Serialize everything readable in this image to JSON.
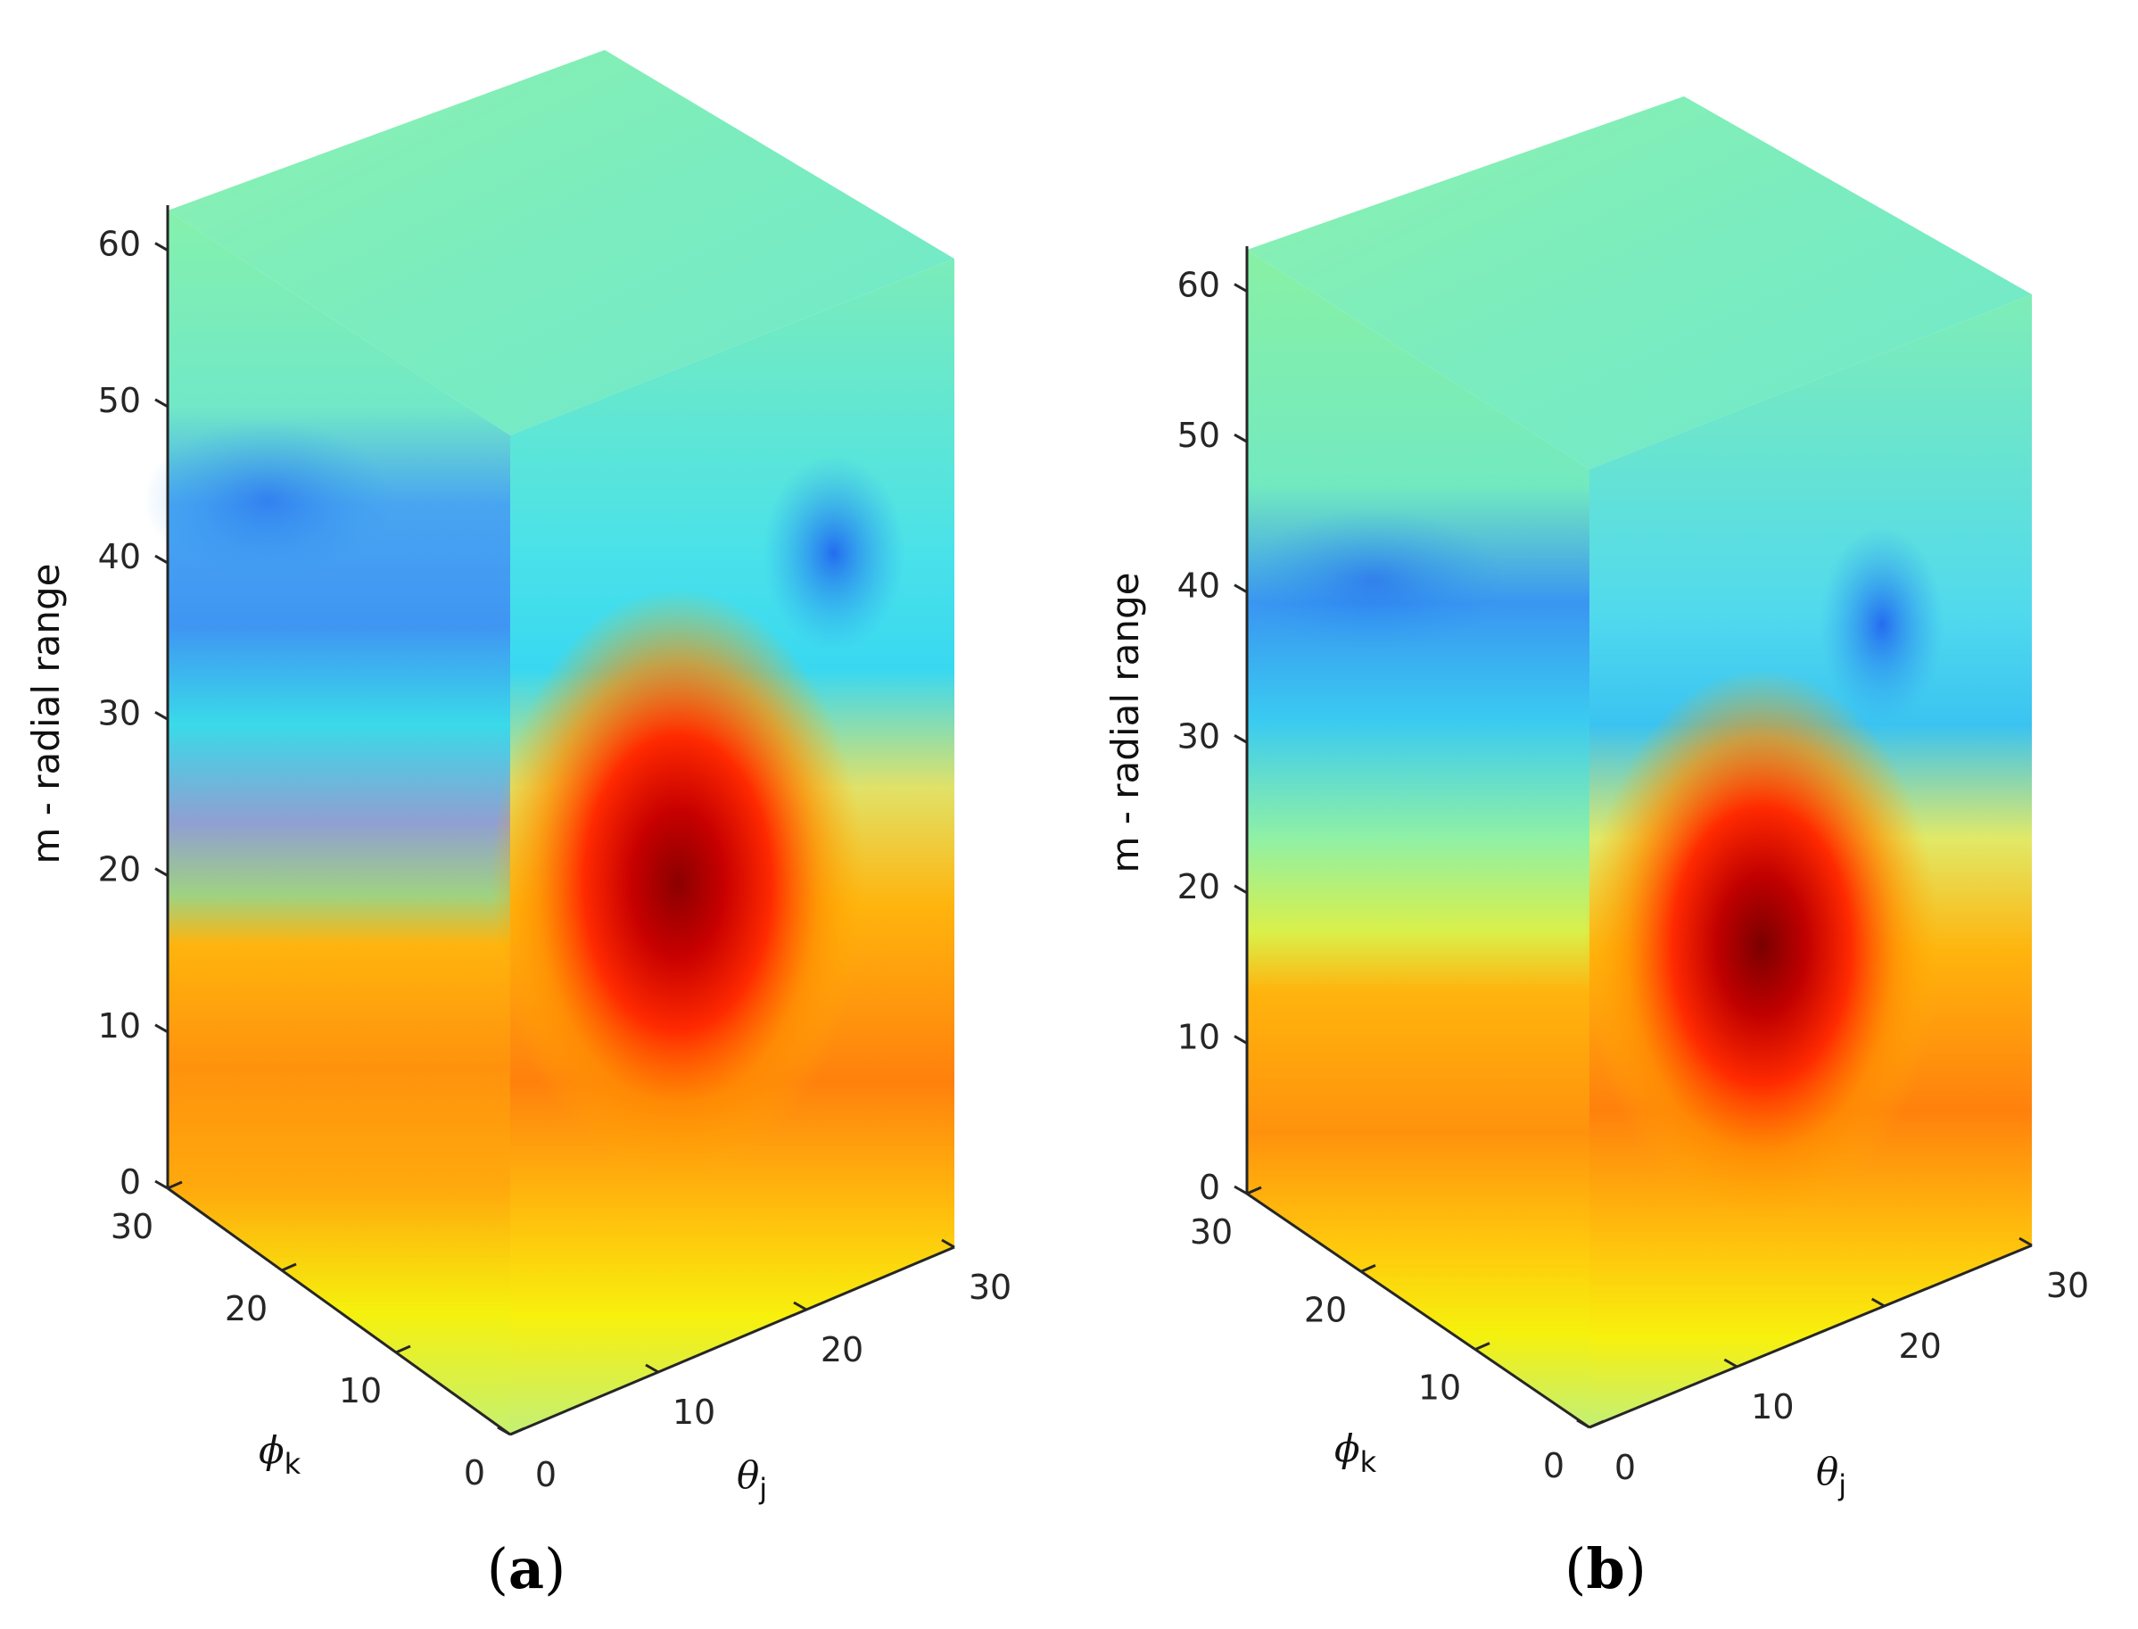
{
  "chart_data": [
    {
      "type": "heatmap",
      "panel_label": "a",
      "ylabel": "m - radial range",
      "xlabel_symbol": "θ",
      "xlabel_sub": "j",
      "zlabel_symbol": "ϕ",
      "zlabel_sub": "k",
      "ylim": [
        0,
        63
      ],
      "xlim": [
        0,
        30
      ],
      "zlim": [
        0,
        30
      ],
      "y_ticks": [
        "0",
        "10",
        "20",
        "30",
        "40",
        "50",
        "60"
      ],
      "theta_ticks": [
        "0",
        "10",
        "20",
        "30"
      ],
      "phi_ticks": [
        "0",
        "10",
        "20",
        "30"
      ],
      "peak": {
        "theta": 12,
        "phi": 0,
        "m": 18
      },
      "colormap": "jet"
    },
    {
      "type": "heatmap",
      "panel_label": "b",
      "ylabel": "m - radial range",
      "xlabel_symbol": "θ",
      "xlabel_sub": "j",
      "zlabel_symbol": "ϕ",
      "zlabel_sub": "k",
      "ylim": [
        0,
        63
      ],
      "xlim": [
        0,
        30
      ],
      "zlim": [
        0,
        30
      ],
      "y_ticks": [
        "0",
        "10",
        "20",
        "30",
        "40",
        "50",
        "60"
      ],
      "theta_ticks": [
        "0",
        "10",
        "20",
        "30"
      ],
      "phi_ticks": [
        "0",
        "10",
        "20",
        "30"
      ],
      "peak": {
        "theta": 12,
        "phi": 0,
        "m": 17
      },
      "colormap": "jet"
    }
  ]
}
